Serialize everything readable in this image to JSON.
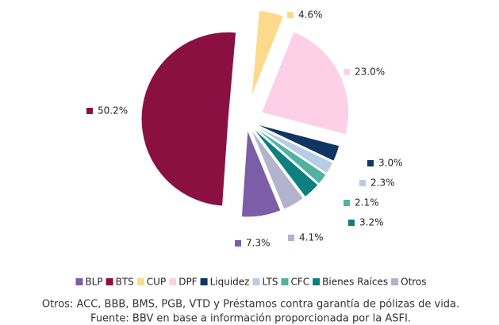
{
  "chart_data": {
    "type": "pie",
    "categories": [
      "BLP",
      "BTS",
      "CUP",
      "DPF",
      "Liquidez",
      "LTS",
      "CFC",
      "Bienes Raíces",
      "Otros"
    ],
    "values": [
      7.3,
      50.2,
      4.6,
      23.0,
      3.0,
      2.3,
      2.1,
      3.2,
      4.1
    ],
    "value_labels": [
      "7.3%",
      "50.2%",
      "4.6%",
      "23.0%",
      "3.0%",
      "2.3%",
      "2.1%",
      "3.2%",
      "4.1%"
    ],
    "colors": [
      "#7b5ea7",
      "#8b1042",
      "#fdd98b",
      "#fdd0e8",
      "#0f3563",
      "#b8cde4",
      "#4fb3a0",
      "#0e7f80",
      "#b3b3cd"
    ],
    "legend": "bottom",
    "notes": [
      "Otros: ACC, BBB, BMS, PGB, VTD y Préstamos contra garantía de pólizas de vida.",
      "Fuente: BBV en base a información proporcionada por la ASFI."
    ]
  }
}
